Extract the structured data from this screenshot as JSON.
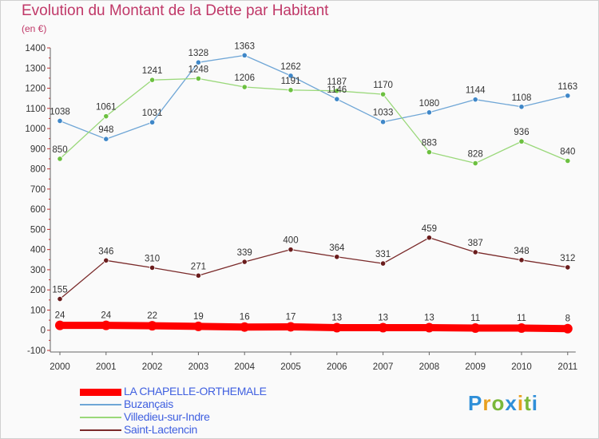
{
  "header": {
    "title": "Evolution du Montant de la Dette par Habitant",
    "unit": "(en €)"
  },
  "logo": {
    "letters": [
      "P",
      "r",
      "o",
      "x",
      "i",
      "t",
      "i"
    ],
    "colors": [
      "#2f8fd8",
      "#e8a020",
      "#7ab83a",
      "#2f8fd8",
      "#e8a020",
      "#7ab83a",
      "#2f8fd8"
    ]
  },
  "chart_data": {
    "type": "line",
    "title": "Evolution du Montant de la Dette par Habitant",
    "ylabel": "(en €)",
    "categories": [
      "2000",
      "2001",
      "2002",
      "2003",
      "2004",
      "2005",
      "2006",
      "2007",
      "2008",
      "2009",
      "2010",
      "2011"
    ],
    "ylim": [
      -100,
      1400
    ],
    "yticks": [
      -100,
      0,
      100,
      200,
      300,
      400,
      500,
      600,
      700,
      800,
      900,
      1000,
      1100,
      1200,
      1300,
      1400
    ],
    "grid": false,
    "series": [
      {
        "name": "Buzançais",
        "color": "#6fa6d6",
        "point_color": "#3f87c8",
        "bold": false,
        "values": [
          1038,
          948,
          1031,
          1328,
          1363,
          1262,
          1146,
          1033,
          1080,
          1144,
          1108,
          1163
        ],
        "labels": [
          "1038",
          "948",
          "1031",
          "1328",
          "1363",
          "1262",
          "1146",
          "1033",
          "1080",
          "1144",
          "1108",
          "1163"
        ]
      },
      {
        "name": "Villedieu-sur-Indre",
        "color": "#9ad87a",
        "point_color": "#6cc040",
        "bold": false,
        "values": [
          850,
          1061,
          1241,
          1248,
          1206,
          1191,
          1187,
          1170,
          883,
          828,
          936,
          840
        ],
        "labels": [
          "850",
          "1061",
          "1241",
          "1248",
          "1206",
          "1191",
          "1187",
          "1170",
          "883",
          "828",
          "936",
          "840"
        ]
      },
      {
        "name": "Saint-Lactencin",
        "color": "#7a2a2a",
        "point_color": "#6a1c1c",
        "bold": false,
        "values": [
          155,
          346,
          310,
          271,
          339,
          400,
          364,
          331,
          459,
          387,
          348,
          312
        ],
        "labels": [
          "155",
          "346",
          "310",
          "271",
          "339",
          "400",
          "364",
          "331",
          "459",
          "387",
          "348",
          "312"
        ]
      },
      {
        "name": "LA CHAPELLE-ORTHEMALE",
        "color": "#ff0000",
        "point_color": "#ff0000",
        "bold": true,
        "values": [
          24,
          24,
          22,
          19,
          16,
          17,
          13,
          13,
          13,
          11,
          11,
          8
        ],
        "labels": [
          "24",
          "24",
          "22",
          "19",
          "16",
          "17",
          "13",
          "13",
          "13",
          "11",
          "11",
          "8"
        ]
      }
    ],
    "legend_order": [
      3,
      0,
      1,
      2
    ]
  }
}
